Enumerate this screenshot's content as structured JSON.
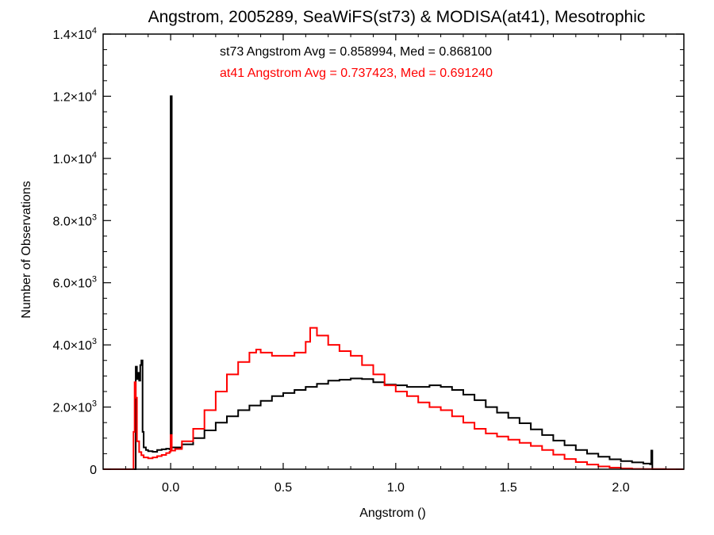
{
  "chart_data": {
    "type": "line",
    "title": "Angstrom, 2005289, SeaWiFS(st73) & MODISA(at41), Mesotrophic",
    "xlabel": "Angstrom ()",
    "ylabel": "Number of Observations",
    "xlim": [
      -0.3,
      2.28
    ],
    "ylim": [
      0,
      14000
    ],
    "x_ticks": [
      {
        "value": 0.0,
        "label": "0.0"
      },
      {
        "value": 0.5,
        "label": "0.5"
      },
      {
        "value": 1.0,
        "label": "1.0"
      },
      {
        "value": 1.5,
        "label": "1.5"
      },
      {
        "value": 2.0,
        "label": "2.0"
      }
    ],
    "y_ticks": [
      {
        "value": 0,
        "mant": "0",
        "exp": ""
      },
      {
        "value": 2000,
        "mant": "2.0×10",
        "exp": "3"
      },
      {
        "value": 4000,
        "mant": "4.0×10",
        "exp": "3"
      },
      {
        "value": 6000,
        "mant": "6.0×10",
        "exp": "3"
      },
      {
        "value": 8000,
        "mant": "8.0×10",
        "exp": "3"
      },
      {
        "value": 10000,
        "mant": "1.0×10",
        "exp": "4"
      },
      {
        "value": 12000,
        "mant": "1.2×10",
        "exp": "4"
      },
      {
        "value": 14000,
        "mant": "1.4×10",
        "exp": "4"
      }
    ],
    "step_style": "histogram",
    "annotations": [
      {
        "text": "st73 Angstrom Avg = 0.858994, Med = 0.868100",
        "color": "#000000"
      },
      {
        "text": "at41 Angstrom Avg = 0.737423, Med = 0.691240",
        "color": "#ff0000"
      }
    ],
    "series": [
      {
        "color": "#000000",
        "points": [
          [
            -0.3,
            0
          ],
          [
            -0.16,
            0
          ],
          [
            -0.155,
            3300
          ],
          [
            -0.15,
            2900
          ],
          [
            -0.145,
            3100
          ],
          [
            -0.14,
            2850
          ],
          [
            -0.135,
            3350
          ],
          [
            -0.13,
            3500
          ],
          [
            -0.125,
            1200
          ],
          [
            -0.12,
            700
          ],
          [
            -0.11,
            620
          ],
          [
            -0.1,
            580
          ],
          [
            -0.08,
            560
          ],
          [
            -0.06,
            620
          ],
          [
            -0.04,
            640
          ],
          [
            -0.02,
            660
          ],
          [
            -0.005,
            640
          ],
          [
            0.0,
            12000
          ],
          [
            0.005,
            700
          ],
          [
            0.02,
            700
          ],
          [
            0.05,
            800
          ],
          [
            0.1,
            1000
          ],
          [
            0.15,
            1250
          ],
          [
            0.2,
            1500
          ],
          [
            0.25,
            1700
          ],
          [
            0.3,
            1900
          ],
          [
            0.35,
            2050
          ],
          [
            0.4,
            2200
          ],
          [
            0.45,
            2350
          ],
          [
            0.5,
            2450
          ],
          [
            0.55,
            2550
          ],
          [
            0.6,
            2650
          ],
          [
            0.65,
            2750
          ],
          [
            0.7,
            2850
          ],
          [
            0.75,
            2880
          ],
          [
            0.8,
            2920
          ],
          [
            0.85,
            2900
          ],
          [
            0.9,
            2800
          ],
          [
            0.95,
            2720
          ],
          [
            1.0,
            2700
          ],
          [
            1.05,
            2650
          ],
          [
            1.1,
            2650
          ],
          [
            1.15,
            2700
          ],
          [
            1.2,
            2650
          ],
          [
            1.25,
            2550
          ],
          [
            1.3,
            2400
          ],
          [
            1.35,
            2220
          ],
          [
            1.4,
            2000
          ],
          [
            1.45,
            1820
          ],
          [
            1.5,
            1650
          ],
          [
            1.55,
            1480
          ],
          [
            1.6,
            1280
          ],
          [
            1.65,
            1100
          ],
          [
            1.7,
            920
          ],
          [
            1.75,
            770
          ],
          [
            1.8,
            620
          ],
          [
            1.85,
            500
          ],
          [
            1.9,
            400
          ],
          [
            1.95,
            320
          ],
          [
            2.0,
            260
          ],
          [
            2.05,
            220
          ],
          [
            2.1,
            180
          ],
          [
            2.13,
            160
          ],
          [
            2.135,
            600
          ],
          [
            2.14,
            0
          ],
          [
            2.28,
            0
          ]
        ]
      },
      {
        "color": "#ff0000",
        "points": [
          [
            -0.3,
            0
          ],
          [
            -0.17,
            0
          ],
          [
            -0.165,
            1200
          ],
          [
            -0.16,
            2800
          ],
          [
            -0.155,
            2300
          ],
          [
            -0.15,
            900
          ],
          [
            -0.14,
            550
          ],
          [
            -0.13,
            450
          ],
          [
            -0.12,
            380
          ],
          [
            -0.1,
            350
          ],
          [
            -0.08,
            380
          ],
          [
            -0.06,
            420
          ],
          [
            -0.04,
            460
          ],
          [
            -0.02,
            520
          ],
          [
            -0.005,
            560
          ],
          [
            0.0,
            1100
          ],
          [
            0.005,
            600
          ],
          [
            0.02,
            650
          ],
          [
            0.05,
            900
          ],
          [
            0.1,
            1300
          ],
          [
            0.15,
            1900
          ],
          [
            0.2,
            2500
          ],
          [
            0.25,
            3050
          ],
          [
            0.3,
            3450
          ],
          [
            0.35,
            3750
          ],
          [
            0.38,
            3850
          ],
          [
            0.4,
            3750
          ],
          [
            0.45,
            3650
          ],
          [
            0.5,
            3650
          ],
          [
            0.55,
            3750
          ],
          [
            0.6,
            4100
          ],
          [
            0.62,
            4550
          ],
          [
            0.65,
            4300
          ],
          [
            0.7,
            4000
          ],
          [
            0.75,
            3800
          ],
          [
            0.8,
            3650
          ],
          [
            0.85,
            3350
          ],
          [
            0.9,
            3050
          ],
          [
            0.95,
            2700
          ],
          [
            1.0,
            2500
          ],
          [
            1.05,
            2350
          ],
          [
            1.1,
            2150
          ],
          [
            1.15,
            2000
          ],
          [
            1.2,
            1900
          ],
          [
            1.25,
            1700
          ],
          [
            1.3,
            1500
          ],
          [
            1.35,
            1300
          ],
          [
            1.4,
            1150
          ],
          [
            1.45,
            1050
          ],
          [
            1.5,
            950
          ],
          [
            1.55,
            850
          ],
          [
            1.6,
            750
          ],
          [
            1.65,
            620
          ],
          [
            1.7,
            470
          ],
          [
            1.75,
            330
          ],
          [
            1.8,
            230
          ],
          [
            1.85,
            150
          ],
          [
            1.9,
            90
          ],
          [
            1.95,
            50
          ],
          [
            2.0,
            25
          ],
          [
            2.05,
            10
          ],
          [
            2.1,
            4
          ],
          [
            2.2,
            0
          ],
          [
            2.28,
            0
          ]
        ]
      }
    ]
  }
}
